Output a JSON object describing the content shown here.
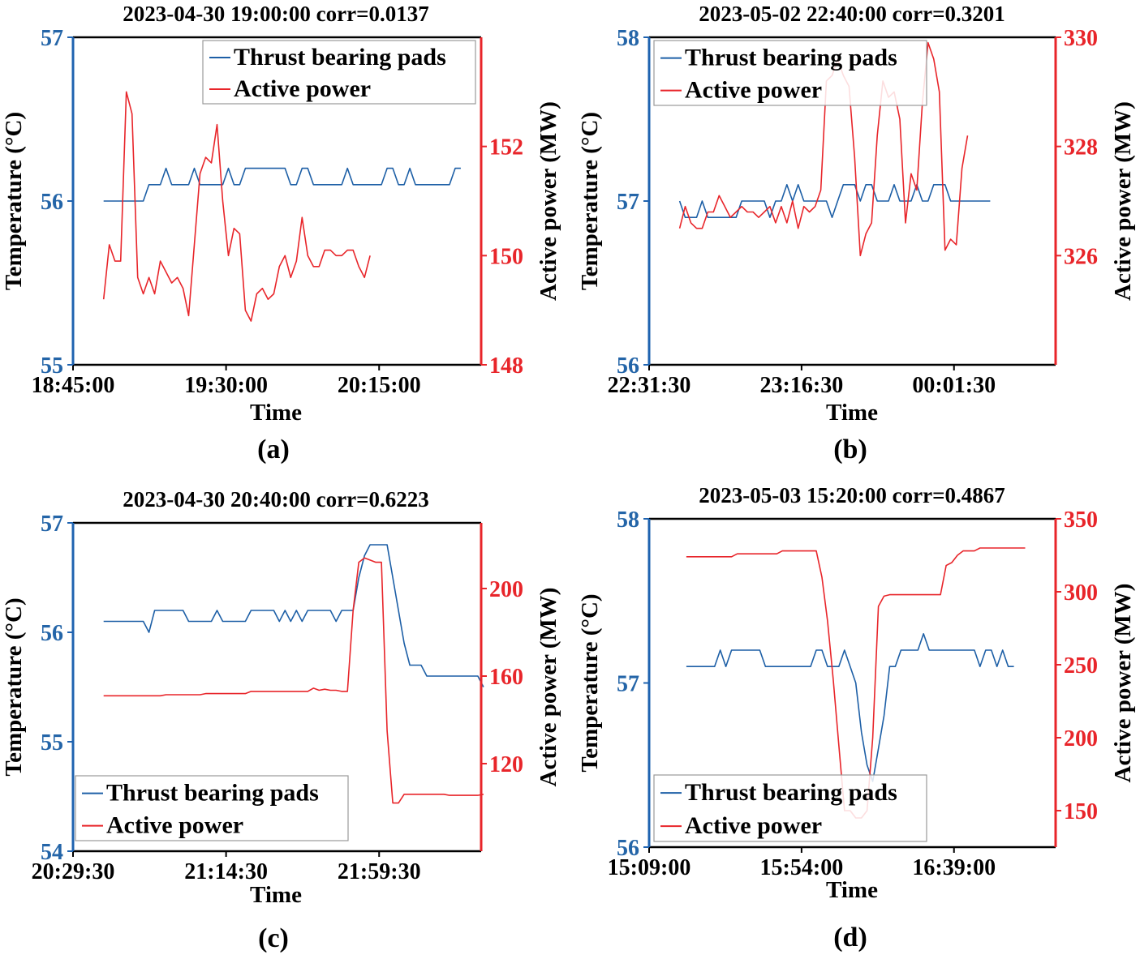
{
  "figure": {
    "background": "#ffffff"
  },
  "colors": {
    "temperature": "#1d5fa6",
    "power": "#e8252a",
    "left_axis": "#1f63b0",
    "right_axis": "#e8252a"
  },
  "chart_data": [
    {
      "type": "line",
      "panel_label": "(a)",
      "title": "2023-04-30 19:00:00  corr=0.0137",
      "xlabel": "Time",
      "ylabel_left": "Temperature (°C)",
      "ylabel_right": "Active power (MW)",
      "x_ticks": [
        0,
        45,
        90
      ],
      "x_tick_labels": [
        "18:45:00",
        "19:30:00",
        "20:15:00"
      ],
      "xlim": [
        0,
        120
      ],
      "ylim_left": [
        55,
        57
      ],
      "yticks_left": [
        55,
        56,
        57
      ],
      "ylim_right": [
        148,
        154
      ],
      "yticks_right": [
        148,
        150,
        152
      ],
      "legend_position": "top-right",
      "legend": [
        "Thrust bearing pads",
        "Active power"
      ],
      "series": [
        {
          "name": "Thrust bearing pads",
          "axis": "left",
          "x_start": 9,
          "x_step": 1.667,
          "values": [
            56.0,
            56.0,
            56.0,
            56.0,
            56.0,
            56.0,
            56.0,
            56.0,
            56.1,
            56.1,
            56.1,
            56.2,
            56.1,
            56.1,
            56.1,
            56.1,
            56.2,
            56.1,
            56.1,
            56.1,
            56.1,
            56.1,
            56.2,
            56.1,
            56.1,
            56.2,
            56.2,
            56.2,
            56.2,
            56.2,
            56.2,
            56.2,
            56.2,
            56.1,
            56.1,
            56.2,
            56.2,
            56.1,
            56.1,
            56.1,
            56.1,
            56.1,
            56.1,
            56.2,
            56.1,
            56.1,
            56.1,
            56.1,
            56.1,
            56.1,
            56.2,
            56.2,
            56.1,
            56.1,
            56.2,
            56.1,
            56.1,
            56.1,
            56.1,
            56.1,
            56.1,
            56.1,
            56.2,
            56.2
          ]
        },
        {
          "name": "Active power",
          "axis": "right",
          "x_start": 9,
          "x_step": 1.667,
          "values": [
            149.2,
            150.2,
            149.9,
            149.9,
            153.0,
            152.6,
            149.6,
            149.3,
            149.6,
            149.3,
            149.9,
            149.7,
            149.5,
            149.6,
            149.4,
            148.9,
            150.2,
            151.5,
            151.8,
            151.7,
            152.4,
            151.0,
            150.0,
            150.5,
            150.4,
            149.0,
            148.8,
            149.3,
            149.4,
            149.2,
            149.3,
            149.8,
            150.0,
            149.6,
            149.9,
            150.7,
            150.0,
            149.8,
            149.8,
            150.1,
            150.1,
            150.0,
            150.0,
            150.1,
            150.1,
            149.8,
            149.6,
            150.0
          ]
        }
      ]
    },
    {
      "type": "line",
      "panel_label": "(b)",
      "title": "2023-05-02 22:40:00  corr=0.3201",
      "xlabel": "Time",
      "ylabel_left": "Temperature (°C)",
      "ylabel_right": "Active power (MW)",
      "x_ticks": [
        0,
        45,
        90
      ],
      "x_tick_labels": [
        "22:31:30",
        "23:16:30",
        "00:01:30"
      ],
      "xlim": [
        0,
        120
      ],
      "ylim_left": [
        56,
        58
      ],
      "yticks_left": [
        56,
        57,
        58
      ],
      "ylim_right": [
        324,
        330
      ],
      "yticks_right": [
        326,
        328,
        330
      ],
      "legend_position": "top-left",
      "legend": [
        "Thrust bearing pads",
        "Active power"
      ],
      "series": [
        {
          "name": "Thrust bearing pads",
          "axis": "left",
          "x_start": 9,
          "x_step": 1.667,
          "values": [
            57.0,
            56.9,
            56.9,
            56.9,
            57.0,
            56.9,
            56.9,
            56.9,
            56.9,
            56.9,
            56.9,
            57.0,
            57.0,
            57.0,
            57.0,
            57.0,
            56.9,
            57.0,
            57.0,
            57.1,
            57.0,
            57.1,
            57.0,
            57.0,
            57.0,
            57.0,
            57.0,
            56.9,
            57.0,
            57.1,
            57.1,
            57.1,
            57.0,
            57.1,
            57.1,
            57.0,
            57.0,
            57.0,
            57.1,
            57.0,
            57.0,
            57.0,
            57.1,
            57.0,
            57.0,
            57.1,
            57.1,
            57.1,
            57.0,
            57.0,
            57.0,
            57.0,
            57.0,
            57.0,
            57.0,
            57.0
          ]
        },
        {
          "name": "Active power",
          "axis": "right",
          "x_start": 9,
          "x_step": 1.667,
          "values": [
            326.5,
            326.9,
            326.6,
            326.5,
            326.5,
            326.8,
            326.8,
            327.1,
            326.9,
            326.7,
            326.8,
            326.9,
            326.8,
            326.8,
            326.7,
            326.8,
            326.9,
            326.6,
            326.9,
            326.6,
            327.0,
            326.5,
            326.9,
            326.8,
            326.9,
            327.2,
            329.2,
            329.3,
            329.6,
            329.3,
            329.1,
            327.8,
            326.0,
            326.4,
            326.6,
            328.2,
            329.2,
            328.9,
            329.0,
            328.5,
            326.6,
            327.5,
            327.2,
            328.8,
            329.9,
            329.6,
            329.0,
            326.1,
            326.3,
            326.2,
            327.6,
            328.2
          ]
        }
      ]
    },
    {
      "type": "line",
      "panel_label": "(c)",
      "title": "2023-04-30 20:40:00  corr=0.6223",
      "xlabel": "Time",
      "ylabel_left": "Temperature (°C)",
      "ylabel_right": "Active power (MW)",
      "x_ticks": [
        0,
        45,
        90
      ],
      "x_tick_labels": [
        "20:29:30",
        "21:14:30",
        "21:59:30"
      ],
      "xlim": [
        0,
        120
      ],
      "ylim_left": [
        54,
        57
      ],
      "yticks_left": [
        54,
        55,
        56,
        57
      ],
      "ylim_right": [
        80,
        230
      ],
      "yticks_right": [
        120,
        160,
        200
      ],
      "legend_position": "bottom-left",
      "legend": [
        "Thrust bearing pads",
        "Active power"
      ],
      "series": [
        {
          "name": "Thrust bearing pads",
          "axis": "left",
          "x_start": 9,
          "x_step": 1.667,
          "values": [
            56.1,
            56.1,
            56.1,
            56.1,
            56.1,
            56.1,
            56.1,
            56.1,
            56.0,
            56.2,
            56.2,
            56.2,
            56.2,
            56.2,
            56.2,
            56.1,
            56.1,
            56.1,
            56.1,
            56.1,
            56.2,
            56.1,
            56.1,
            56.1,
            56.1,
            56.1,
            56.2,
            56.2,
            56.2,
            56.2,
            56.2,
            56.1,
            56.2,
            56.1,
            56.2,
            56.1,
            56.2,
            56.2,
            56.2,
            56.2,
            56.2,
            56.1,
            56.2,
            56.2,
            56.2,
            56.5,
            56.7,
            56.8,
            56.8,
            56.8,
            56.8,
            56.5,
            56.2,
            55.9,
            55.7,
            55.7,
            55.7,
            55.6,
            55.6,
            55.6,
            55.6,
            55.6,
            55.6,
            55.6,
            55.6,
            55.6,
            55.6,
            55.5
          ]
        },
        {
          "name": "Active power",
          "axis": "right",
          "x_start": 9,
          "x_step": 1.667,
          "values": [
            151.0,
            151.0,
            151.0,
            151.0,
            151.0,
            151.0,
            151.0,
            151.0,
            151.0,
            151.0,
            151.0,
            151.5,
            151.5,
            151.5,
            151.5,
            151.5,
            151.5,
            151.5,
            152.0,
            152.0,
            152.0,
            152.0,
            152.0,
            152.0,
            152.0,
            152.0,
            153.0,
            153.0,
            153.0,
            153.0,
            153.0,
            153.0,
            153.0,
            153.0,
            153.0,
            153.0,
            153.0,
            154.5,
            153.5,
            154.0,
            153.5,
            153.5,
            153.0,
            153.0,
            190.0,
            212.0,
            214.0,
            213.0,
            212.0,
            212.0,
            135.0,
            102.0,
            102.0,
            106.0,
            106.0,
            106.0,
            106.0,
            106.0,
            106.0,
            106.0,
            106.0,
            105.5,
            105.5,
            105.5,
            105.5,
            105.5,
            105.5,
            106.0
          ]
        }
      ]
    },
    {
      "type": "line",
      "panel_label": "(d)",
      "title": "2023-05-03 15:20:00  corr=0.4867",
      "xlabel": "Time",
      "ylabel_left": "Temperature (°C)",
      "ylabel_right": "Active power (MW)",
      "x_ticks": [
        0,
        45,
        90
      ],
      "x_tick_labels": [
        "15:09:00",
        "15:54:00",
        "16:39:00"
      ],
      "xlim": [
        0,
        120
      ],
      "ylim_left": [
        56,
        58
      ],
      "yticks_left": [
        56,
        57,
        58
      ],
      "ylim_right": [
        125,
        350
      ],
      "yticks_right": [
        150,
        200,
        250,
        300,
        350
      ],
      "legend_position": "bottom-left",
      "legend": [
        "Thrust bearing pads",
        "Active power"
      ],
      "series": [
        {
          "name": "Thrust bearing pads",
          "axis": "left",
          "x_start": 11,
          "x_step": 1.667,
          "values": [
            57.1,
            57.1,
            57.1,
            57.1,
            57.1,
            57.1,
            57.2,
            57.1,
            57.2,
            57.2,
            57.2,
            57.2,
            57.2,
            57.2,
            57.1,
            57.1,
            57.1,
            57.1,
            57.1,
            57.1,
            57.1,
            57.1,
            57.1,
            57.2,
            57.2,
            57.1,
            57.1,
            57.1,
            57.2,
            57.1,
            57.0,
            56.7,
            56.5,
            56.4,
            56.6,
            56.8,
            57.1,
            57.1,
            57.2,
            57.2,
            57.2,
            57.2,
            57.3,
            57.2,
            57.2,
            57.2,
            57.2,
            57.2,
            57.2,
            57.2,
            57.2,
            57.2,
            57.1,
            57.2,
            57.2,
            57.1,
            57.2,
            57.1,
            57.1
          ]
        },
        {
          "name": "Active power",
          "axis": "right",
          "x_start": 11,
          "x_step": 1.667,
          "values": [
            324,
            324,
            324,
            324,
            324,
            324,
            324,
            324,
            324,
            326,
            326,
            326,
            326,
            326,
            326,
            326,
            326,
            328,
            328,
            328,
            328,
            328,
            328,
            328,
            310,
            280,
            240,
            195,
            150,
            150,
            145,
            145,
            150,
            200,
            290,
            297,
            298,
            298,
            298,
            298,
            298,
            298,
            298,
            298,
            298,
            298,
            318,
            320,
            325,
            328,
            328,
            328,
            330,
            330,
            330,
            330,
            330,
            330,
            330,
            330,
            330
          ]
        }
      ]
    }
  ]
}
